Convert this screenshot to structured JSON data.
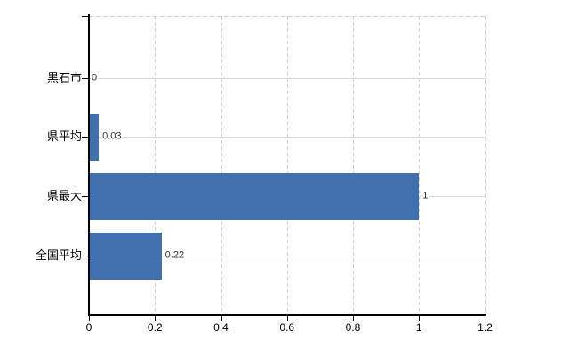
{
  "chart_data": {
    "type": "bar",
    "orientation": "horizontal",
    "title": "",
    "categories": [
      "黒石市",
      "県平均",
      "県最大",
      "全国平均"
    ],
    "values": [
      0,
      0.03,
      1,
      0.22
    ],
    "value_labels": [
      "0",
      "0.03",
      "1",
      "0.22"
    ],
    "xlim": [
      0,
      1.2
    ],
    "x_ticks": [
      0,
      0.2,
      0.4,
      0.6,
      0.8,
      1,
      1.2
    ],
    "x_tick_labels": [
      "0",
      "0.2",
      "0.4",
      "0.6",
      "0.8",
      "1",
      "1.2"
    ],
    "grid": true,
    "legend": false,
    "colors": {
      "bar": "#4070ad",
      "vgrid": "#d2d2d2",
      "hgrid": "#d8d8d8",
      "axis": "#000000",
      "data_label": "#333333",
      "tick_label": "#000000",
      "background": "#ffffff"
    }
  }
}
